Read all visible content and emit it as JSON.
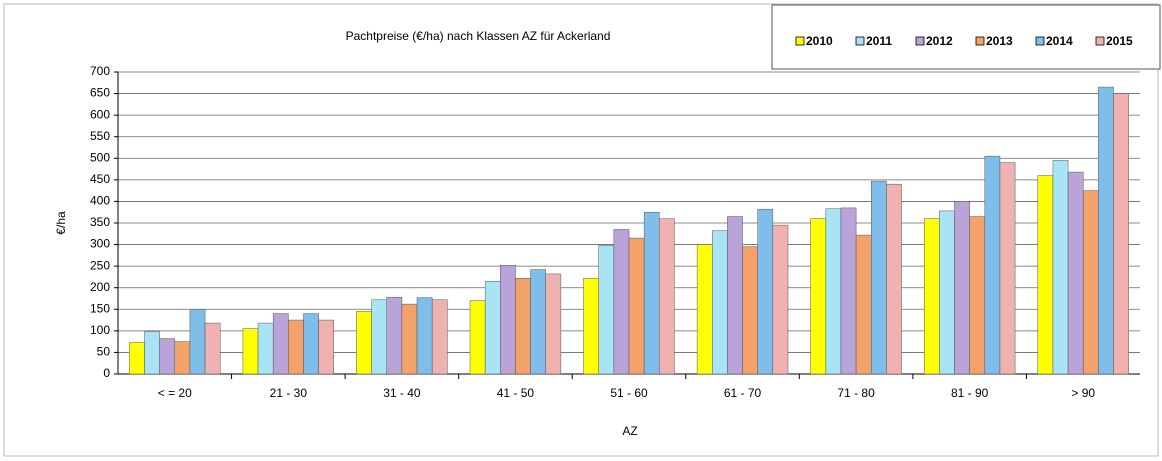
{
  "chart_data": {
    "type": "bar",
    "title": "Pachtpreise (€/ha) nach Klassen AZ für Ackerland",
    "x_label": "AZ",
    "y_label": "€/ha",
    "categories": [
      "< = 20",
      "21 - 30",
      "31 - 40",
      "41 - 50",
      "51 - 60",
      "61 - 70",
      "71 - 80",
      "81 - 90",
      "> 90"
    ],
    "series": [
      {
        "name": "2010",
        "color": "#ffff00",
        "values": [
          73,
          105,
          145,
          170,
          222,
          300,
          360,
          360,
          460
        ]
      },
      {
        "name": "2011",
        "color": "#a8e4f5",
        "values": [
          98,
          118,
          172,
          215,
          298,
          332,
          383,
          378,
          495
        ]
      },
      {
        "name": "2012",
        "color": "#b9a3d9",
        "values": [
          82,
          140,
          178,
          252,
          335,
          365,
          385,
          400,
          468
        ]
      },
      {
        "name": "2013",
        "color": "#f3a36a",
        "values": [
          75,
          125,
          162,
          222,
          315,
          295,
          322,
          365,
          425
        ]
      },
      {
        "name": "2014",
        "color": "#7fbdea",
        "values": [
          150,
          140,
          177,
          242,
          375,
          382,
          447,
          505,
          665
        ]
      },
      {
        "name": "2015",
        "color": "#efb2b0",
        "values": [
          118,
          125,
          172,
          232,
          360,
          345,
          440,
          490,
          650
        ]
      }
    ],
    "ylim": [
      0,
      700
    ],
    "yticks": [
      0,
      50,
      100,
      150,
      200,
      250,
      300,
      350,
      400,
      450,
      500,
      550,
      600,
      650,
      700
    ],
    "grid": true,
    "legend": "top-right"
  }
}
